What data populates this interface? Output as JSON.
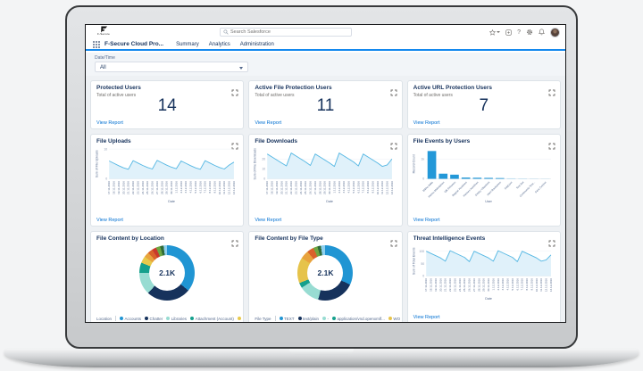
{
  "header": {
    "search_placeholder": "Search Salesforce",
    "icons": [
      "favorites-star",
      "global-actions-box",
      "help",
      "setup-gear",
      "notifications-bell",
      "avatar"
    ]
  },
  "logo": {
    "text": "F-Secure"
  },
  "nav": {
    "app_name": "F-Secure Cloud Pro...",
    "tabs": [
      "Summary",
      "Analytics",
      "Administration"
    ]
  },
  "filter": {
    "label": "Date/Time",
    "value": "All"
  },
  "labels": {
    "view_report": "View Report"
  },
  "colors": {
    "accent_blue": "#1589ee",
    "link_blue": "#0070d2",
    "navy": "#16325c",
    "line_blue": "#54b7e3",
    "area_fill": "#e0f1fa",
    "bar_blue": "#2398d8"
  },
  "metrics": [
    {
      "title": "Protected Users",
      "subtitle": "Total of active users",
      "value": "14"
    },
    {
      "title": "Active File Protection Users",
      "subtitle": "Total of active users",
      "value": "11"
    },
    {
      "title": "Active URL Protection Users",
      "subtitle": "Total of active users",
      "value": "7"
    }
  ],
  "chart_data": [
    {
      "type": "line",
      "title": "File Uploads",
      "ylabel": "Sum of File Uploads",
      "xlabel": "Date",
      "ylim": [
        0,
        10
      ],
      "yticks": [
        0,
        10
      ],
      "ytick_labels": [
        "0",
        "10"
      ],
      "color": "#54b7e3",
      "fill": "#e0f1fa",
      "x": [
        "17.11.2016",
        "18.11.2016",
        "19.11.2016",
        "20.11.2016",
        "21.11.2016",
        "22.11.2016",
        "23.11.2016",
        "24.11.2016",
        "25.11.2016",
        "26.11.2016",
        "27.11.2016",
        "28.11.2016",
        "29.11.2016",
        "30.11.2016",
        "1.12.2016",
        "2.12.2016",
        "3.12.2016",
        "4.12.2016",
        "5.12.2016",
        "6.12.2016",
        "7.12.2016",
        "8.12.2016",
        "9.12.2016",
        "10.12.2016",
        "11.12.2016",
        "12.12.2016",
        "13.12.2016"
      ],
      "values": [
        6,
        5.2,
        4.4,
        3.7,
        3.2,
        6.1,
        5.3,
        4.5,
        3.8,
        3.3,
        6.2,
        5.4,
        4.6,
        3.9,
        3.4,
        6,
        5.2,
        4.4,
        3.7,
        3.2,
        6.1,
        5.3,
        4.5,
        3.8,
        3.3,
        4.6,
        5.6
      ]
    },
    {
      "type": "line",
      "title": "File Downloads",
      "ylabel": "Sum of File Downloads",
      "xlabel": "Date",
      "ylim": [
        0,
        30
      ],
      "yticks": [
        0,
        10,
        20
      ],
      "ytick_labels": [
        "0",
        "10",
        "20"
      ],
      "color": "#54b7e3",
      "fill": "#e0f1fa",
      "x": [
        "17.11.2016",
        "18.11.2016",
        "19.11.2016",
        "20.11.2016",
        "21.11.2016",
        "22.11.2016",
        "23.11.2016",
        "24.11.2016",
        "25.11.2016",
        "26.11.2016",
        "27.11.2016",
        "28.11.2016",
        "29.11.2016",
        "30.11.2016",
        "1.12.2016",
        "2.12.2016",
        "3.12.2016",
        "4.12.2016",
        "5.12.2016",
        "6.12.2016",
        "7.12.2016",
        "8.12.2016",
        "9.12.2016",
        "10.12.2016",
        "11.12.2016",
        "12.12.2016",
        "13.12.2016"
      ],
      "values": [
        25,
        22,
        19,
        16,
        13,
        26,
        23,
        20,
        17,
        13.5,
        25,
        22,
        19,
        16,
        12.5,
        26,
        23,
        20,
        17,
        13,
        25,
        22,
        19,
        16,
        12.5,
        14,
        20
      ]
    },
    {
      "type": "bar",
      "title": "File Events by Users",
      "ylabel": "Record Count",
      "xlabel": "User",
      "ylim": [
        0,
        1500
      ],
      "yticks": [
        0,
        1000
      ],
      "ytick_labels": [
        "0",
        "1k"
      ],
      "categories": [
        "Mikko Aalto",
        "Hannu Makelainen",
        "Olli Pirhonen",
        "Ragnar Koskinen",
        "Hannes Koistinen",
        "Dmitry Viltaniemi",
        "Harri Rautiainen",
        "SddUser",
        "Test Bot",
        "Community Test...",
        "Sara Zurcher"
      ],
      "values": [
        1400,
        260,
        210,
        65,
        55,
        48,
        38,
        25,
        18,
        12,
        8
      ],
      "colors": [
        "#2398d8",
        "#2398d8",
        "#2398d8",
        "#2398d8",
        "#2398d8",
        "#2398d8",
        "#2398d8",
        "#9fd4ef",
        "#9fd4ef",
        "#9fd4ef",
        "#9fd4ef"
      ]
    },
    {
      "type": "donut",
      "title": "File Content by Location",
      "center": "2.1K",
      "legend_title": "Location",
      "segments": [
        {
          "label": "Accounts",
          "value": 36,
          "color": "#2095d3"
        },
        {
          "label": "Chatter",
          "value": 26,
          "color": "#16325c"
        },
        {
          "label": "Libraries",
          "value": 13,
          "color": "#98dcd2"
        },
        {
          "label": "Attachment (Account)",
          "value": 6,
          "color": "#15a08c"
        },
        {
          "label": "",
          "value": 4,
          "color": "#e8c94b"
        },
        {
          "label": "",
          "value": 3,
          "color": "#e8a33d"
        },
        {
          "label": "",
          "value": 3,
          "color": "#d9622b"
        },
        {
          "label": "",
          "value": 2.5,
          "color": "#c9392c"
        },
        {
          "label": "",
          "value": 2.5,
          "color": "#6fa743"
        },
        {
          "label": "",
          "value": 2,
          "color": "#2f6b3a"
        },
        {
          "label": "",
          "value": 2,
          "color": "#8fd0ee"
        }
      ],
      "legend": [
        {
          "label": "Accounts",
          "color": "#2095d3"
        },
        {
          "label": "Chatter",
          "color": "#16325c"
        },
        {
          "label": "Libraries",
          "color": "#98dcd2"
        },
        {
          "label": "Attachment (Account)",
          "color": "#15a08c"
        },
        {
          "label": "I",
          "color": "#e8c94b"
        }
      ]
    },
    {
      "type": "donut",
      "title": "File Content by File Type",
      "center": "2.1K",
      "legend_title": "File Type",
      "segments": [
        {
          "label": "TEXT",
          "value": 32,
          "color": "#2095d3"
        },
        {
          "label": "text/plain",
          "value": 22,
          "color": "#16325c"
        },
        {
          "label": "-",
          "value": 12,
          "color": "#98dcd2"
        },
        {
          "label": "application/vnd.openxmlf...",
          "value": 3,
          "color": "#15a08c"
        },
        {
          "label": "WO",
          "value": 15,
          "color": "#e6c34a"
        },
        {
          "label": "",
          "value": 5,
          "color": "#e8a33d"
        },
        {
          "label": "",
          "value": 4,
          "color": "#d9622b"
        },
        {
          "label": "",
          "value": 2.5,
          "color": "#6fa743"
        },
        {
          "label": "",
          "value": 2,
          "color": "#2f6b3a"
        },
        {
          "label": "",
          "value": 2.5,
          "color": "#8fd0ee"
        }
      ],
      "legend": [
        {
          "label": "TEXT",
          "color": "#2095d3"
        },
        {
          "label": "text/plain",
          "color": "#16325c"
        },
        {
          "label": "-",
          "color": "#98dcd2"
        },
        {
          "label": "application/vnd.openxmlf...",
          "color": "#15a08c"
        },
        {
          "label": "WO",
          "color": "#e6c34a"
        }
      ]
    },
    {
      "type": "line",
      "title": "Threat Intelligence Events",
      "ylabel": "Sum of Total Events",
      "xlabel": "Date",
      "ylim": [
        0,
        120
      ],
      "yticks": [
        0,
        50,
        100
      ],
      "ytick_labels": [
        "0",
        "50",
        "100"
      ],
      "color": "#54b7e3",
      "fill": "#e0f1fa",
      "x": [
        "17.11.2016",
        "18.11.2016",
        "19.11.2016",
        "20.11.2016",
        "21.11.2016",
        "22.11.2016",
        "23.11.2016",
        "24.11.2016",
        "25.11.2016",
        "26.11.2016",
        "27.11.2016",
        "28.11.2016",
        "29.11.2016",
        "30.11.2016",
        "1.12.2016",
        "2.12.2016",
        "3.12.2016",
        "4.12.2016",
        "5.12.2016",
        "6.12.2016",
        "7.12.2016",
        "8.12.2016",
        "9.12.2016",
        "10.12.2016",
        "11.12.2016",
        "12.12.2016",
        "13.12.2016"
      ],
      "values": [
        100,
        91,
        82,
        73,
        60,
        102,
        93,
        84,
        75,
        58,
        100,
        91,
        82,
        73,
        60,
        102,
        93,
        84,
        75,
        58,
        100,
        91,
        82,
        73,
        60,
        65,
        85
      ]
    }
  ]
}
